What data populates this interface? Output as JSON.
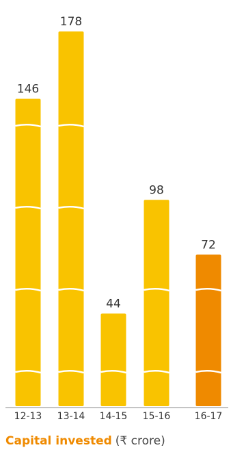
{
  "chart_data": {
    "type": "bar",
    "title": "Capital invested",
    "subtitle": "(₹ crore)",
    "categories": [
      "12-13",
      "13-14",
      "14-15",
      "15-16",
      "16-17"
    ],
    "values": [
      146,
      178,
      44,
      98,
      72
    ],
    "colors": [
      "#f9c300",
      "#f9c300",
      "#f9c300",
      "#f9c300",
      "#ef8a00"
    ]
  }
}
